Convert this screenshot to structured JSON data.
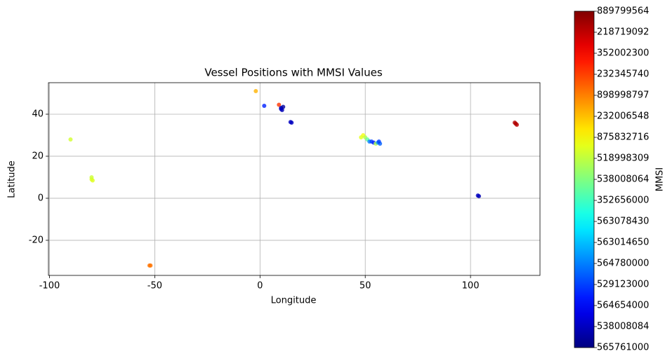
{
  "chart_data": {
    "type": "scatter",
    "title": "Vessel Positions with MMSI Values",
    "xlabel": "Longitude",
    "ylabel": "Latitude",
    "xlim": [
      -100.5,
      133
    ],
    "ylim": [
      -36.7,
      55
    ],
    "xticks": [
      -100,
      -50,
      0,
      50,
      100
    ],
    "yticks": [
      -20,
      0,
      20,
      40
    ],
    "grid": true,
    "colormap": "jet",
    "x": [
      -90,
      -80,
      -79.5,
      -80,
      -52,
      -52.5,
      -2,
      2,
      9,
      10,
      10.5,
      11,
      10,
      15,
      14.5,
      49,
      48,
      50,
      51,
      52,
      53,
      54,
      55,
      56,
      57,
      56.5,
      104,
      103.5,
      121,
      122,
      121.5
    ],
    "y": [
      28,
      9,
      8.5,
      10,
      -32,
      -32,
      51,
      44,
      44.5,
      43,
      42,
      43.5,
      42.5,
      36,
      36.3,
      30,
      29,
      29,
      28,
      27,
      27,
      26.5,
      26,
      26.5,
      26,
      27,
      1,
      1.3,
      36,
      35,
      35.5
    ],
    "c": [
      9.3,
      9.5,
      9.5,
      9.2,
      12.2,
      12.2,
      11.2,
      2.5,
      13.2,
      0.5,
      0.8,
      0.5,
      1,
      1,
      1,
      9.8,
      9.6,
      8.8,
      7.5,
      4,
      3,
      2.5,
      8.8,
      4.3,
      3.5,
      3,
      0.8,
      1,
      15.2,
      15,
      15.3
    ],
    "colorbar": {
      "label": "MMSI",
      "clim": [
        0,
        16
      ],
      "categories": [
        "565761000",
        "538008084",
        "564654000",
        "529123000",
        "564780000",
        "563014650",
        "563078430",
        "352656000",
        "538008064",
        "518998309",
        "875832716",
        "232006548",
        "898998797",
        "232345740",
        "352002300",
        "218719092",
        "889799564"
      ]
    }
  }
}
